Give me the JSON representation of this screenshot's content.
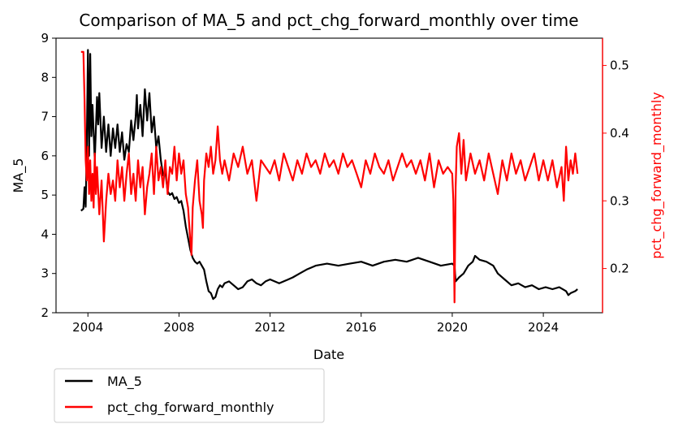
{
  "chart_data": {
    "type": "line",
    "title": "Comparison of MA_5 and pct_chg_forward_monthly over time",
    "xlabel": "Date",
    "ylabel_left": "MA_5",
    "ylabel_right": "pct_chg_forward_monthly",
    "xlim": [
      2002.6,
      2026.6
    ],
    "ylim_left": [
      2,
      9
    ],
    "ylim_right": [
      0.1347,
      0.5403
    ],
    "x_ticks": [
      2004,
      2008,
      2012,
      2016,
      2020,
      2024
    ],
    "y_ticks_left": [
      2,
      3,
      4,
      5,
      6,
      7,
      8,
      9
    ],
    "y_ticks_right": [
      0.2,
      0.3,
      0.4,
      0.5
    ],
    "grid": false,
    "legend": {
      "placement": "below-left",
      "entries": [
        "MA_5",
        "pct_chg_forward_monthly"
      ]
    },
    "colors": {
      "MA_5": "#000000",
      "pct_chg_forward_monthly": "#ff0000",
      "right_axis": "#ff0000"
    },
    "series": [
      {
        "name": "MA_5",
        "axis": "left",
        "points": [
          [
            2003.7,
            4.6
          ],
          [
            2003.8,
            4.65
          ],
          [
            2003.85,
            5.2
          ],
          [
            2003.9,
            4.7
          ],
          [
            2003.95,
            6.3
          ],
          [
            2004.0,
            8.7
          ],
          [
            2004.05,
            6.0
          ],
          [
            2004.1,
            8.6
          ],
          [
            2004.15,
            6.5
          ],
          [
            2004.2,
            7.3
          ],
          [
            2004.3,
            5.9
          ],
          [
            2004.4,
            7.5
          ],
          [
            2004.45,
            6.8
          ],
          [
            2004.5,
            7.6
          ],
          [
            2004.6,
            6.2
          ],
          [
            2004.7,
            7.0
          ],
          [
            2004.8,
            6.1
          ],
          [
            2004.9,
            6.8
          ],
          [
            2005.0,
            6.0
          ],
          [
            2005.1,
            6.7
          ],
          [
            2005.2,
            6.2
          ],
          [
            2005.3,
            6.8
          ],
          [
            2005.4,
            6.1
          ],
          [
            2005.5,
            6.6
          ],
          [
            2005.6,
            5.9
          ],
          [
            2005.7,
            6.3
          ],
          [
            2005.8,
            6.1
          ],
          [
            2005.9,
            6.9
          ],
          [
            2006.0,
            6.4
          ],
          [
            2006.1,
            7.0
          ],
          [
            2006.15,
            7.55
          ],
          [
            2006.2,
            6.7
          ],
          [
            2006.3,
            7.3
          ],
          [
            2006.4,
            6.5
          ],
          [
            2006.5,
            7.7
          ],
          [
            2006.6,
            6.9
          ],
          [
            2006.7,
            7.6
          ],
          [
            2006.8,
            6.6
          ],
          [
            2006.9,
            7.0
          ],
          [
            2007.0,
            6.2
          ],
          [
            2007.1,
            6.5
          ],
          [
            2007.2,
            5.9
          ],
          [
            2007.3,
            5.5
          ],
          [
            2007.4,
            5.6
          ],
          [
            2007.5,
            5.1
          ],
          [
            2007.6,
            5.0
          ],
          [
            2007.7,
            5.05
          ],
          [
            2007.8,
            4.9
          ],
          [
            2007.9,
            4.95
          ],
          [
            2008.0,
            4.8
          ],
          [
            2008.1,
            4.85
          ],
          [
            2008.2,
            4.6
          ],
          [
            2008.3,
            4.2
          ],
          [
            2008.4,
            3.9
          ],
          [
            2008.5,
            3.6
          ],
          [
            2008.6,
            3.4
          ],
          [
            2008.7,
            3.3
          ],
          [
            2008.8,
            3.25
          ],
          [
            2008.9,
            3.3
          ],
          [
            2009.0,
            3.2
          ],
          [
            2009.1,
            3.1
          ],
          [
            2009.2,
            2.8
          ],
          [
            2009.3,
            2.55
          ],
          [
            2009.4,
            2.5
          ],
          [
            2009.5,
            2.35
          ],
          [
            2009.6,
            2.4
          ],
          [
            2009.7,
            2.6
          ],
          [
            2009.8,
            2.7
          ],
          [
            2009.9,
            2.65
          ],
          [
            2010.0,
            2.75
          ],
          [
            2010.2,
            2.8
          ],
          [
            2010.4,
            2.7
          ],
          [
            2010.6,
            2.6
          ],
          [
            2010.8,
            2.65
          ],
          [
            2011.0,
            2.8
          ],
          [
            2011.2,
            2.85
          ],
          [
            2011.4,
            2.75
          ],
          [
            2011.6,
            2.7
          ],
          [
            2011.8,
            2.8
          ],
          [
            2012.0,
            2.85
          ],
          [
            2012.2,
            2.8
          ],
          [
            2012.4,
            2.75
          ],
          [
            2012.6,
            2.8
          ],
          [
            2012.8,
            2.85
          ],
          [
            2013.0,
            2.9
          ],
          [
            2013.3,
            3.0
          ],
          [
            2013.6,
            3.1
          ],
          [
            2014.0,
            3.2
          ],
          [
            2014.5,
            3.25
          ],
          [
            2015.0,
            3.2
          ],
          [
            2015.5,
            3.25
          ],
          [
            2016.0,
            3.3
          ],
          [
            2016.5,
            3.2
          ],
          [
            2017.0,
            3.3
          ],
          [
            2017.5,
            3.35
          ],
          [
            2018.0,
            3.3
          ],
          [
            2018.5,
            3.4
          ],
          [
            2019.0,
            3.3
          ],
          [
            2019.5,
            3.2
          ],
          [
            2020.0,
            3.25
          ],
          [
            2020.1,
            3.2
          ],
          [
            2020.15,
            2.8
          ],
          [
            2020.3,
            2.9
          ],
          [
            2020.5,
            3.0
          ],
          [
            2020.7,
            3.2
          ],
          [
            2020.9,
            3.3
          ],
          [
            2021.0,
            3.45
          ],
          [
            2021.2,
            3.35
          ],
          [
            2021.5,
            3.3
          ],
          [
            2021.8,
            3.2
          ],
          [
            2022.0,
            3.0
          ],
          [
            2022.3,
            2.85
          ],
          [
            2022.6,
            2.7
          ],
          [
            2022.9,
            2.75
          ],
          [
            2023.2,
            2.65
          ],
          [
            2023.5,
            2.7
          ],
          [
            2023.8,
            2.6
          ],
          [
            2024.1,
            2.65
          ],
          [
            2024.4,
            2.6
          ],
          [
            2024.7,
            2.65
          ],
          [
            2025.0,
            2.55
          ],
          [
            2025.1,
            2.45
          ],
          [
            2025.2,
            2.5
          ],
          [
            2025.4,
            2.55
          ],
          [
            2025.5,
            2.6
          ]
        ]
      },
      {
        "name": "pct_chg_forward_monthly",
        "axis": "right",
        "points": [
          [
            2003.7,
            0.52
          ],
          [
            2003.75,
            0.52
          ],
          [
            2003.8,
            0.52
          ],
          [
            2003.85,
            0.45
          ],
          [
            2003.9,
            0.36
          ],
          [
            2003.95,
            0.33
          ],
          [
            2004.0,
            0.38
          ],
          [
            2004.05,
            0.31
          ],
          [
            2004.1,
            0.36
          ],
          [
            2004.15,
            0.3
          ],
          [
            2004.2,
            0.34
          ],
          [
            2004.25,
            0.29
          ],
          [
            2004.3,
            0.37
          ],
          [
            2004.35,
            0.31
          ],
          [
            2004.4,
            0.35
          ],
          [
            2004.5,
            0.28
          ],
          [
            2004.6,
            0.33
          ],
          [
            2004.7,
            0.24
          ],
          [
            2004.8,
            0.3
          ],
          [
            2004.9,
            0.34
          ],
          [
            2005.0,
            0.31
          ],
          [
            2005.1,
            0.33
          ],
          [
            2005.2,
            0.3
          ],
          [
            2005.3,
            0.36
          ],
          [
            2005.4,
            0.32
          ],
          [
            2005.5,
            0.35
          ],
          [
            2005.6,
            0.3
          ],
          [
            2005.7,
            0.34
          ],
          [
            2005.8,
            0.37
          ],
          [
            2005.9,
            0.31
          ],
          [
            2006.0,
            0.34
          ],
          [
            2006.1,
            0.3
          ],
          [
            2006.2,
            0.36
          ],
          [
            2006.3,
            0.32
          ],
          [
            2006.4,
            0.35
          ],
          [
            2006.5,
            0.28
          ],
          [
            2006.6,
            0.32
          ],
          [
            2006.7,
            0.34
          ],
          [
            2006.8,
            0.37
          ],
          [
            2006.9,
            0.31
          ],
          [
            2007.0,
            0.38
          ],
          [
            2007.1,
            0.33
          ],
          [
            2007.2,
            0.35
          ],
          [
            2007.3,
            0.32
          ],
          [
            2007.4,
            0.36
          ],
          [
            2007.5,
            0.31
          ],
          [
            2007.6,
            0.35
          ],
          [
            2007.7,
            0.34
          ],
          [
            2007.8,
            0.38
          ],
          [
            2007.9,
            0.33
          ],
          [
            2008.0,
            0.37
          ],
          [
            2008.1,
            0.34
          ],
          [
            2008.2,
            0.36
          ],
          [
            2008.3,
            0.31
          ],
          [
            2008.4,
            0.29
          ],
          [
            2008.5,
            0.24
          ],
          [
            2008.55,
            0.22
          ],
          [
            2008.6,
            0.29
          ],
          [
            2008.7,
            0.33
          ],
          [
            2008.8,
            0.36
          ],
          [
            2008.9,
            0.3
          ],
          [
            2009.0,
            0.28
          ],
          [
            2009.05,
            0.26
          ],
          [
            2009.1,
            0.33
          ],
          [
            2009.2,
            0.37
          ],
          [
            2009.3,
            0.35
          ],
          [
            2009.4,
            0.38
          ],
          [
            2009.5,
            0.34
          ],
          [
            2009.6,
            0.36
          ],
          [
            2009.7,
            0.41
          ],
          [
            2009.8,
            0.36
          ],
          [
            2009.9,
            0.34
          ],
          [
            2010.0,
            0.36
          ],
          [
            2010.2,
            0.33
          ],
          [
            2010.4,
            0.37
          ],
          [
            2010.6,
            0.35
          ],
          [
            2010.8,
            0.38
          ],
          [
            2011.0,
            0.34
          ],
          [
            2011.2,
            0.36
          ],
          [
            2011.4,
            0.3
          ],
          [
            2011.5,
            0.33
          ],
          [
            2011.6,
            0.36
          ],
          [
            2011.8,
            0.35
          ],
          [
            2012.0,
            0.34
          ],
          [
            2012.2,
            0.36
          ],
          [
            2012.4,
            0.33
          ],
          [
            2012.6,
            0.37
          ],
          [
            2012.8,
            0.35
          ],
          [
            2013.0,
            0.33
          ],
          [
            2013.2,
            0.36
          ],
          [
            2013.4,
            0.34
          ],
          [
            2013.6,
            0.37
          ],
          [
            2013.8,
            0.35
          ],
          [
            2014.0,
            0.36
          ],
          [
            2014.2,
            0.34
          ],
          [
            2014.4,
            0.37
          ],
          [
            2014.6,
            0.35
          ],
          [
            2014.8,
            0.36
          ],
          [
            2015.0,
            0.34
          ],
          [
            2015.2,
            0.37
          ],
          [
            2015.4,
            0.35
          ],
          [
            2015.6,
            0.36
          ],
          [
            2015.8,
            0.34
          ],
          [
            2016.0,
            0.32
          ],
          [
            2016.2,
            0.36
          ],
          [
            2016.4,
            0.34
          ],
          [
            2016.6,
            0.37
          ],
          [
            2016.8,
            0.35
          ],
          [
            2017.0,
            0.34
          ],
          [
            2017.2,
            0.36
          ],
          [
            2017.4,
            0.33
          ],
          [
            2017.6,
            0.35
          ],
          [
            2017.8,
            0.37
          ],
          [
            2018.0,
            0.35
          ],
          [
            2018.2,
            0.36
          ],
          [
            2018.4,
            0.34
          ],
          [
            2018.6,
            0.36
          ],
          [
            2018.8,
            0.33
          ],
          [
            2019.0,
            0.37
          ],
          [
            2019.2,
            0.32
          ],
          [
            2019.4,
            0.36
          ],
          [
            2019.6,
            0.34
          ],
          [
            2019.8,
            0.35
          ],
          [
            2020.0,
            0.34
          ],
          [
            2020.05,
            0.3
          ],
          [
            2020.1,
            0.15
          ],
          [
            2020.15,
            0.32
          ],
          [
            2020.2,
            0.38
          ],
          [
            2020.3,
            0.4
          ],
          [
            2020.4,
            0.34
          ],
          [
            2020.5,
            0.39
          ],
          [
            2020.6,
            0.33
          ],
          [
            2020.8,
            0.37
          ],
          [
            2021.0,
            0.34
          ],
          [
            2021.2,
            0.36
          ],
          [
            2021.4,
            0.33
          ],
          [
            2021.6,
            0.37
          ],
          [
            2021.8,
            0.34
          ],
          [
            2022.0,
            0.31
          ],
          [
            2022.2,
            0.36
          ],
          [
            2022.4,
            0.33
          ],
          [
            2022.6,
            0.37
          ],
          [
            2022.8,
            0.34
          ],
          [
            2023.0,
            0.36
          ],
          [
            2023.2,
            0.33
          ],
          [
            2023.4,
            0.35
          ],
          [
            2023.6,
            0.37
          ],
          [
            2023.8,
            0.33
          ],
          [
            2024.0,
            0.36
          ],
          [
            2024.2,
            0.33
          ],
          [
            2024.4,
            0.36
          ],
          [
            2024.6,
            0.32
          ],
          [
            2024.8,
            0.35
          ],
          [
            2024.9,
            0.3
          ],
          [
            2025.0,
            0.38
          ],
          [
            2025.1,
            0.33
          ],
          [
            2025.2,
            0.36
          ],
          [
            2025.3,
            0.34
          ],
          [
            2025.4,
            0.37
          ],
          [
            2025.5,
            0.34
          ]
        ]
      }
    ]
  }
}
